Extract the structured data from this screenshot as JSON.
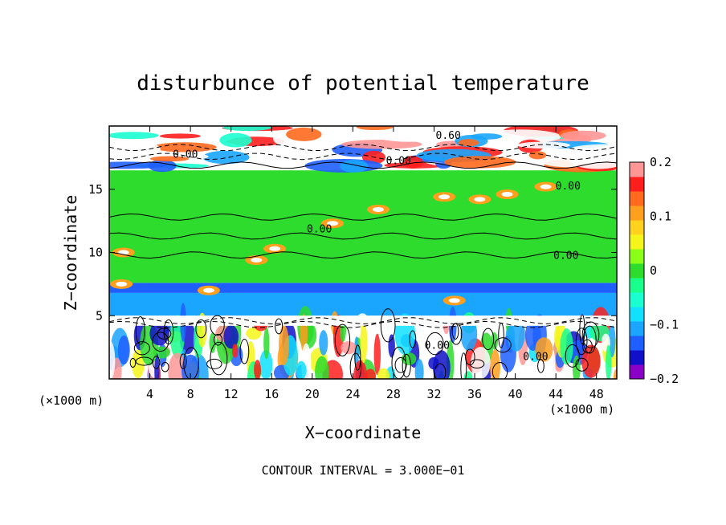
{
  "chart_data": {
    "type": "heatmap",
    "title": "disturbunce of potential temperature",
    "xlabel": "X−coordinate",
    "ylabel": "Z−coordinate",
    "x_unit": "(×1000 m)",
    "y_unit": "(×1000 m)",
    "xlim": [
      0,
      50
    ],
    "ylim": [
      0,
      20
    ],
    "x_ticks": [
      4,
      8,
      12,
      16,
      20,
      24,
      28,
      32,
      36,
      40,
      44,
      48
    ],
    "y_ticks": [
      5,
      10,
      15
    ],
    "footer": "CONTOUR INTERVAL = 3.000E−01",
    "colorbar": {
      "range": [
        -0.2,
        0.2
      ],
      "ticks": [
        0.2,
        0.1,
        0,
        -0.1,
        -0.2
      ],
      "tick_labels": [
        "0.2",
        "0.1",
        "0",
        "−0.1",
        "−0.2"
      ],
      "colors": [
        "#8b00c8",
        "#1010c8",
        "#1f5fff",
        "#1aa5ff",
        "#11e0ff",
        "#19ffd0",
        "#19ff8c",
        "#2ddc2d",
        "#8cff19",
        "#f5f519",
        "#ffd21e",
        "#ff9f1e",
        "#ff6a1e",
        "#ff1e1e",
        "#ff9696"
      ]
    },
    "bands": [
      {
        "z0": 0,
        "z1": 5.0,
        "fill": "mixed"
      },
      {
        "z0": 5.0,
        "z1": 6.8,
        "fill": "#1aa5ff"
      },
      {
        "z0": 6.8,
        "z1": 7.6,
        "fill": "#1f5fff"
      },
      {
        "z0": 7.6,
        "z1": 16.5,
        "fill": "#2ddc2d"
      },
      {
        "z0": 16.5,
        "z1": 20,
        "fill": "mixed"
      }
    ],
    "contour_labels": [
      {
        "x": 33.4,
        "z": 19.3,
        "text": "0.60"
      },
      {
        "x": 7.5,
        "z": 17.8,
        "text": "0.00"
      },
      {
        "x": 28.5,
        "z": 17.3,
        "text": "0.00"
      },
      {
        "x": 45.2,
        "z": 15.3,
        "text": "0.00"
      },
      {
        "x": 20.7,
        "z": 11.9,
        "text": "0.00"
      },
      {
        "x": 45.0,
        "z": 9.8,
        "text": "0.00"
      },
      {
        "x": 32.3,
        "z": 2.7,
        "text": "0.00"
      },
      {
        "x": 42.0,
        "z": 1.8,
        "text": "0.00"
      }
    ]
  }
}
